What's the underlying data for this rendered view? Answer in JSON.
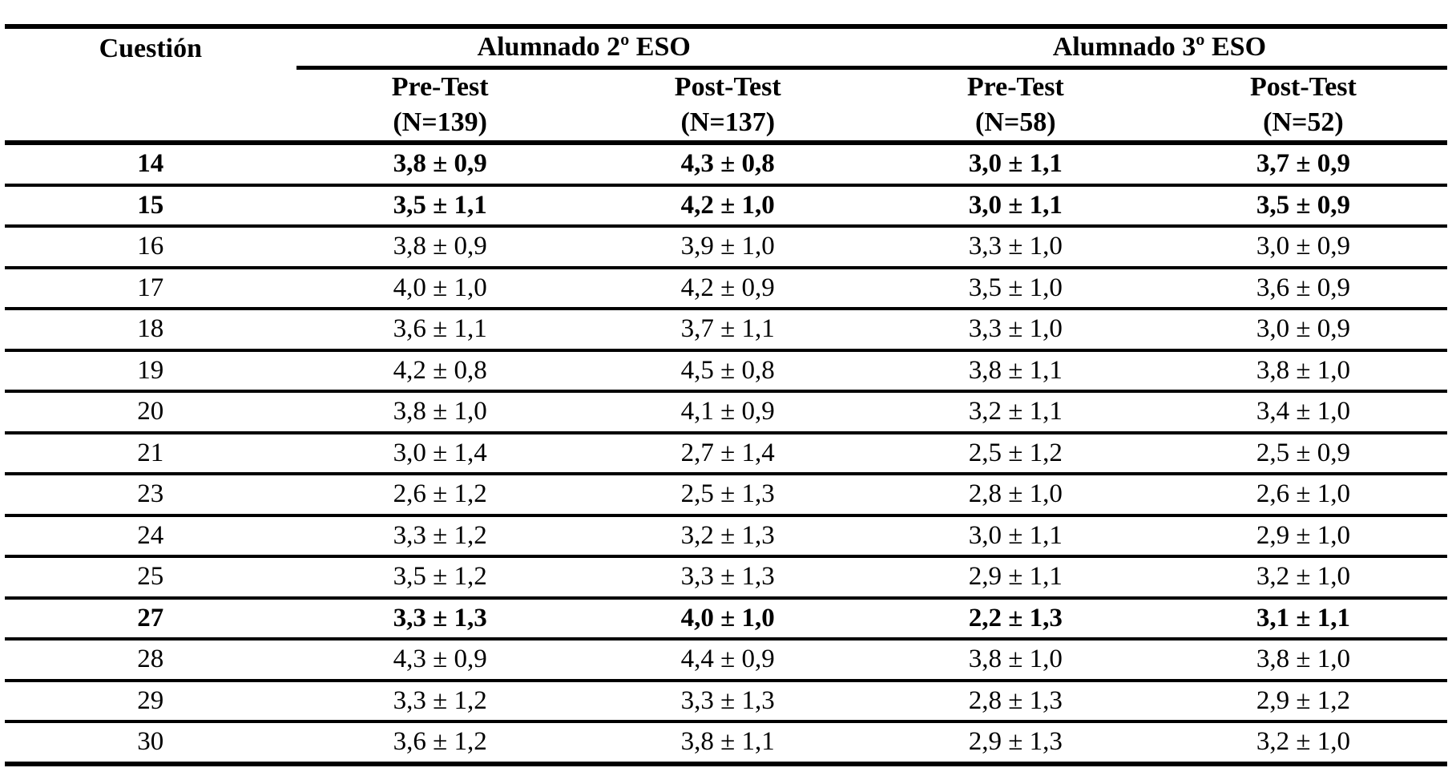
{
  "table": {
    "col1_header": "Cuestión",
    "group_headers": [
      "Alumnado 2º ESO",
      "Alumnado 3º ESO"
    ],
    "sub_headers": [
      {
        "line1": "Pre-Test",
        "line2": "(N=139)"
      },
      {
        "line1": "Post-Test",
        "line2": "(N=137)"
      },
      {
        "line1": "Pre-Test",
        "line2": "(N=58)"
      },
      {
        "line1": "Post-Test",
        "line2": "(N=52)"
      }
    ],
    "rows": [
      {
        "question": "14",
        "bold": true,
        "values": [
          "3,8 ± 0,9",
          "4,3 ± 0,8",
          "3,0 ± 1,1",
          "3,7 ± 0,9"
        ]
      },
      {
        "question": "15",
        "bold": true,
        "values": [
          "3,5 ± 1,1",
          "4,2 ± 1,0",
          "3,0 ± 1,1",
          "3,5 ± 0,9"
        ]
      },
      {
        "question": "16",
        "bold": false,
        "values": [
          "3,8 ± 0,9",
          "3,9 ± 1,0",
          "3,3 ± 1,0",
          "3,0 ± 0,9"
        ]
      },
      {
        "question": "17",
        "bold": false,
        "values": [
          "4,0 ± 1,0",
          "4,2 ± 0,9",
          "3,5 ± 1,0",
          "3,6 ± 0,9"
        ]
      },
      {
        "question": "18",
        "bold": false,
        "values": [
          "3,6 ± 1,1",
          "3,7 ± 1,1",
          "3,3 ± 1,0",
          "3,0 ± 0,9"
        ]
      },
      {
        "question": "19",
        "bold": false,
        "values": [
          "4,2 ± 0,8",
          "4,5 ± 0,8",
          "3,8 ± 1,1",
          "3,8 ± 1,0"
        ]
      },
      {
        "question": "20",
        "bold": false,
        "values": [
          "3,8 ± 1,0",
          "4,1 ± 0,9",
          "3,2 ± 1,1",
          "3,4 ± 1,0"
        ]
      },
      {
        "question": "21",
        "bold": false,
        "values": [
          "3,0 ± 1,4",
          "2,7 ± 1,4",
          "2,5 ± 1,2",
          "2,5 ± 0,9"
        ]
      },
      {
        "question": "23",
        "bold": false,
        "values": [
          "2,6 ± 1,2",
          "2,5 ± 1,3",
          "2,8 ± 1,0",
          "2,6 ± 1,0"
        ]
      },
      {
        "question": "24",
        "bold": false,
        "values": [
          "3,3 ± 1,2",
          "3,2 ± 1,3",
          "3,0 ± 1,1",
          "2,9 ± 1,0"
        ]
      },
      {
        "question": "25",
        "bold": false,
        "values": [
          "3,5 ± 1,2",
          "3,3 ± 1,3",
          "2,9 ± 1,1",
          "3,2 ± 1,0"
        ]
      },
      {
        "question": "27",
        "bold": true,
        "values": [
          "3,3 ± 1,3",
          "4,0 ± 1,0",
          "2,2 ± 1,3",
          "3,1 ± 1,1"
        ]
      },
      {
        "question": "28",
        "bold": false,
        "values": [
          "4,3 ± 0,9",
          "4,4 ± 0,9",
          "3,8 ± 1,0",
          "3,8 ± 1,0"
        ]
      },
      {
        "question": "29",
        "bold": false,
        "values": [
          "3,3 ± 1,2",
          "3,3 ± 1,3",
          "2,8 ± 1,3",
          "2,9 ± 1,2"
        ]
      },
      {
        "question": "30",
        "bold": false,
        "values": [
          "3,6 ± 1,2",
          "3,8 ± 1,1",
          "2,9 ± 1,3",
          "3,2 ± 1,0"
        ]
      }
    ]
  }
}
